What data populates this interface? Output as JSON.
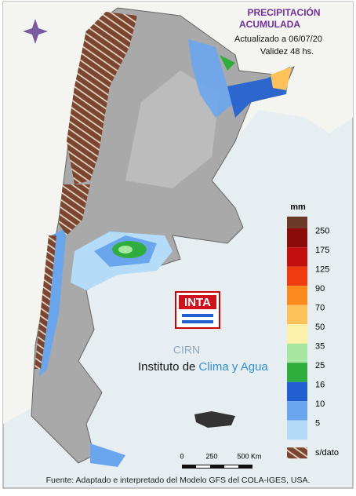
{
  "header": {
    "title_line1": "PRECIPITACIÓN",
    "title_line2": "ACUMULADA",
    "updated": "Actualizado a 06/07/20",
    "validity": "Validez 48 hs."
  },
  "legend": {
    "unit": "mm",
    "items": [
      {
        "label": "250",
        "color": "#8b0a0a"
      },
      {
        "label": "175",
        "color": "#c40f0f"
      },
      {
        "label": "125",
        "color": "#f03a10"
      },
      {
        "label": "90",
        "color": "#fb8a1c"
      },
      {
        "label": "70",
        "color": "#fdc25a"
      },
      {
        "label": "50",
        "color": "#fdf0a8"
      },
      {
        "label": "35",
        "color": "#a6e8a0"
      },
      {
        "label": "25",
        "color": "#2fae3e"
      },
      {
        "label": "16",
        "color": "#1f5fd0"
      },
      {
        "label": "10",
        "color": "#6aa6ee"
      },
      {
        "label": "5",
        "color": "#b4dcf8"
      }
    ],
    "top_color": "#6b3a26",
    "no_data_label": "s/dato"
  },
  "logo": {
    "inta": "INTA",
    "cirn": "CIRN",
    "institute_prefix": "Instituto de",
    "institute_name": "Clima y Agua"
  },
  "scale_bar": {
    "labels": [
      "0",
      "250",
      "500 Km"
    ]
  },
  "footer": "Fuente: Adaptado e interpretado del Modelo GFS del COLA-IGES, USA."
}
